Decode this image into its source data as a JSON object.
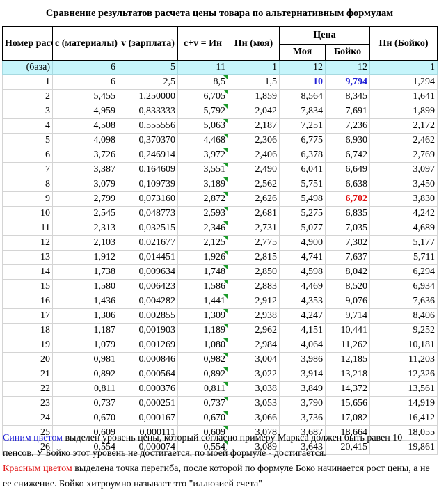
{
  "title": "Сравнение результатов расчета цены товара по альтернативным формулам",
  "headers": {
    "num": "Номер расчета",
    "c": "c (материалы)",
    "v": "v (зарплата)",
    "cv": "c+v = Ин",
    "pn_mine": "Пн (моя)",
    "price": "Цена",
    "price_mine": "Моя",
    "price_boyko": "Бойко",
    "pn_boyko": "Пн (Бойко)"
  },
  "rows": [
    [
      "(база)",
      "6",
      "5",
      "11",
      "1",
      "12",
      "12",
      "1"
    ],
    [
      "1",
      "6",
      "2,5",
      "8,5",
      "1,5",
      "10",
      "9,794",
      "1,294"
    ],
    [
      "2",
      "5,455",
      "1,250000",
      "6,705",
      "1,859",
      "8,564",
      "8,345",
      "1,641"
    ],
    [
      "3",
      "4,959",
      "0,833333",
      "5,792",
      "2,042",
      "7,834",
      "7,691",
      "1,899"
    ],
    [
      "4",
      "4,508",
      "0,555556",
      "5,063",
      "2,187",
      "7,251",
      "7,236",
      "2,172"
    ],
    [
      "5",
      "4,098",
      "0,370370",
      "4,468",
      "2,306",
      "6,775",
      "6,930",
      "2,462"
    ],
    [
      "6",
      "3,726",
      "0,246914",
      "3,972",
      "2,406",
      "6,378",
      "6,742",
      "2,769"
    ],
    [
      "7",
      "3,387",
      "0,164609",
      "3,551",
      "2,490",
      "6,041",
      "6,649",
      "3,097"
    ],
    [
      "8",
      "3,079",
      "0,109739",
      "3,189",
      "2,562",
      "5,751",
      "6,638",
      "3,450"
    ],
    [
      "9",
      "2,799",
      "0,073160",
      "2,872",
      "2,626",
      "5,498",
      "6,702",
      "3,830"
    ],
    [
      "10",
      "2,545",
      "0,048773",
      "2,593",
      "2,681",
      "5,275",
      "6,835",
      "4,242"
    ],
    [
      "11",
      "2,313",
      "0,032515",
      "2,346",
      "2,731",
      "5,077",
      "7,035",
      "4,689"
    ],
    [
      "12",
      "2,103",
      "0,021677",
      "2,125",
      "2,775",
      "4,900",
      "7,302",
      "5,177"
    ],
    [
      "13",
      "1,912",
      "0,014451",
      "1,926",
      "2,815",
      "4,741",
      "7,637",
      "5,711"
    ],
    [
      "14",
      "1,738",
      "0,009634",
      "1,748",
      "2,850",
      "4,598",
      "8,042",
      "6,294"
    ],
    [
      "15",
      "1,580",
      "0,006423",
      "1,586",
      "2,883",
      "4,469",
      "8,520",
      "6,934"
    ],
    [
      "16",
      "1,436",
      "0,004282",
      "1,441",
      "2,912",
      "4,353",
      "9,076",
      "7,636"
    ],
    [
      "17",
      "1,306",
      "0,002855",
      "1,309",
      "2,938",
      "4,247",
      "9,714",
      "8,406"
    ],
    [
      "18",
      "1,187",
      "0,001903",
      "1,189",
      "2,962",
      "4,151",
      "10,441",
      "9,252"
    ],
    [
      "19",
      "1,079",
      "0,001269",
      "1,080",
      "2,984",
      "4,064",
      "11,262",
      "10,181"
    ],
    [
      "20",
      "0,981",
      "0,000846",
      "0,982",
      "3,004",
      "3,986",
      "12,185",
      "11,203"
    ],
    [
      "21",
      "0,892",
      "0,000564",
      "0,892",
      "3,022",
      "3,914",
      "13,218",
      "12,326"
    ],
    [
      "22",
      "0,811",
      "0,000376",
      "0,811",
      "3,038",
      "3,849",
      "14,372",
      "13,561"
    ],
    [
      "23",
      "0,737",
      "0,000251",
      "0,737",
      "3,053",
      "3,790",
      "15,656",
      "14,919"
    ],
    [
      "24",
      "0,670",
      "0,000167",
      "0,670",
      "3,066",
      "3,736",
      "17,082",
      "16,412"
    ],
    [
      "25",
      "0,609",
      "0,000111",
      "0,609",
      "3,078",
      "3,687",
      "18,664",
      "18,055"
    ],
    [
      "26",
      "0,554",
      "0,000074",
      "0,554",
      "3,089",
      "3,643",
      "20,415",
      "19,861"
    ]
  ],
  "notes": {
    "blue_lead": "Синим цветом",
    "blue_text": " выделен уровень цены, который согласно примеру Маркса должен быть равен 10 пенсов. У Бойко этот уровень не достигается, по моей формуле - достигается.",
    "red_lead": "Красным цветом",
    "red_text": " выделена точка перегиба, после которой по формуле Боко начинается рост цены, а не ее снижение. Бойко хитроумно называет это \"иллюзией счета\""
  },
  "colors": {
    "base_row": "#c6f5fb",
    "blue": "#1f1fd6",
    "red": "#e01010",
    "comment_marker": "#1b9a2a"
  }
}
